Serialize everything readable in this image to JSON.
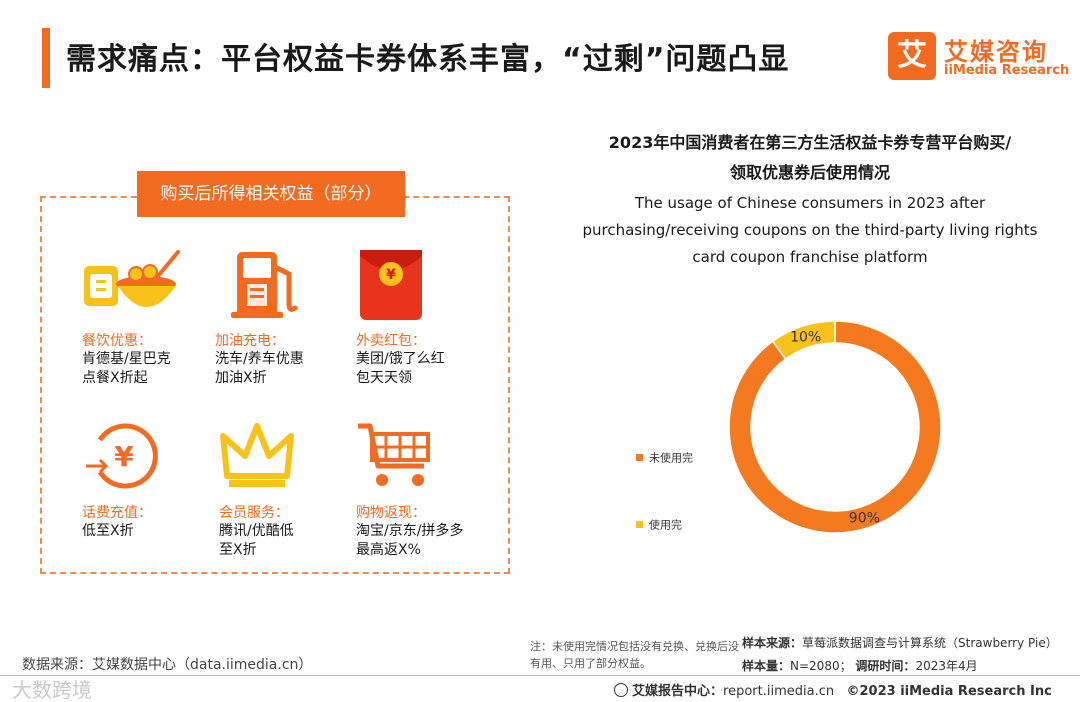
{
  "header": {
    "title": "需求痛点：平台权益卡券体系丰富，“过剩”问题凸显"
  },
  "logo": {
    "mark": "艾",
    "cn": "艾媒咨询",
    "en": "iiMedia Research"
  },
  "benefits_box": {
    "header": "购买后所得相关权益（部分）",
    "items": [
      {
        "icon": "food-bowl-icon",
        "title": "餐饮优惠：",
        "desc": [
          "肯德基/星巴克",
          "点餐X折起"
        ]
      },
      {
        "icon": "fuel-pump-icon",
        "title": "加油充电：",
        "desc": [
          "洗车/养车优惠",
          "加油X折"
        ]
      },
      {
        "icon": "red-envelope-icon",
        "title": "外卖红包：",
        "desc": [
          "美团/饿了么红",
          "包天天领"
        ]
      },
      {
        "icon": "yen-coin-icon",
        "title": "话费充值：",
        "desc": [
          "低至X折"
        ]
      },
      {
        "icon": "crown-icon",
        "title": "会员服务：",
        "desc": [
          "腾讯/优酷低",
          "至X折"
        ]
      },
      {
        "icon": "shopping-cart-icon",
        "title": "购物返现：",
        "desc": [
          "淘宝/京东/拼多多",
          "最高返X%"
        ]
      }
    ]
  },
  "chart_data": {
    "type": "pie",
    "donut": true,
    "title_lines": [
      "2023年中国消费者在第三方生活权益卡券专营平台购买/",
      "领取优惠券后使用情况"
    ],
    "subtitle_lines": [
      "The usage of Chinese consumers in 2023 after",
      "purchasing/receiving coupons on the third-party living rights",
      "card coupon franchise platform"
    ],
    "categories": [
      "未使用完",
      "使用完"
    ],
    "values": [
      90,
      10
    ],
    "value_labels": [
      "90%",
      "10%"
    ],
    "colors": [
      "#f5791f",
      "#f8c21a"
    ],
    "legend_position": "left"
  },
  "note": "注：未使用完情况包括没有兑换、兑换后没有用、只用了部分权益。",
  "sample": {
    "source_label": "样本来源：",
    "source_value": "草莓派数据调查与计算系统（Strawberry Pie）",
    "size_label": "样本量：",
    "size_value": "N=2080；",
    "time_label": "调研时间：",
    "time_value": "2023年4月"
  },
  "data_source": "数据来源：艾媒数据中心（data.iimedia.cn）",
  "watermark": "大数跨境",
  "footer": {
    "center_label": "艾媒报告中心：",
    "url": "report.iimedia.cn",
    "copyright": "©2023  iiMedia Research  Inc"
  }
}
